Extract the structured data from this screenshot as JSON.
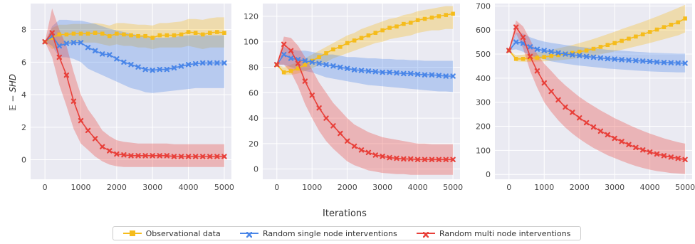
{
  "figure": {
    "xlabel": "Iterations",
    "ylabel": "𝔼 − SHD"
  },
  "legend": [
    {
      "label": "Observational data",
      "color": "#f5bc1c",
      "marker": "square"
    },
    {
      "label": "Random single node interventions",
      "color": "#4a86e8",
      "marker": "x"
    },
    {
      "label": "Random multi node interventions",
      "color": "#e8403a",
      "marker": "x"
    }
  ],
  "chart_data": [
    {
      "type": "line",
      "xlim": [
        -400,
        5200
      ],
      "ylim": [
        -1.2,
        9.6
      ],
      "xticks": [
        0,
        1000,
        2000,
        3000,
        4000,
        5000
      ],
      "yticks": [
        0,
        2,
        4,
        6,
        8
      ],
      "grid": true,
      "ylabel": "𝔼 − SHD",
      "series": [
        {
          "name": "Observational data",
          "color": "#f5bc1c",
          "x": [
            0,
            200,
            400,
            600,
            800,
            1000,
            1200,
            1400,
            1600,
            1800,
            2000,
            2200,
            2400,
            2600,
            2800,
            3000,
            3200,
            3400,
            3600,
            3800,
            4000,
            4200,
            4400,
            4600,
            4800,
            5000
          ],
          "y": [
            7.25,
            7.5,
            7.7,
            7.7,
            7.75,
            7.75,
            7.75,
            7.8,
            7.75,
            7.6,
            7.75,
            7.7,
            7.65,
            7.6,
            7.6,
            7.5,
            7.65,
            7.65,
            7.65,
            7.7,
            7.85,
            7.8,
            7.7,
            7.8,
            7.85,
            7.8
          ],
          "lower": [
            7.25,
            6.8,
            7.0,
            7.1,
            7.2,
            7.2,
            7.2,
            7.2,
            7.1,
            7.0,
            7.1,
            7.0,
            7.0,
            6.9,
            6.9,
            6.8,
            6.9,
            6.9,
            6.9,
            6.9,
            7.0,
            6.9,
            6.8,
            6.9,
            6.9,
            6.9
          ],
          "upper": [
            7.25,
            8.1,
            8.3,
            8.3,
            8.35,
            8.35,
            8.35,
            8.4,
            8.35,
            8.25,
            8.4,
            8.4,
            8.35,
            8.3,
            8.3,
            8.25,
            8.4,
            8.4,
            8.45,
            8.5,
            8.65,
            8.65,
            8.6,
            8.7,
            8.75,
            8.75
          ]
        },
        {
          "name": "Random single node interventions",
          "color": "#4a86e8",
          "x": [
            0,
            200,
            400,
            600,
            800,
            1000,
            1200,
            1400,
            1600,
            1800,
            2000,
            2200,
            2400,
            2600,
            2800,
            3000,
            3200,
            3400,
            3600,
            3800,
            4000,
            4200,
            4400,
            4600,
            4800,
            5000
          ],
          "y": [
            7.25,
            7.6,
            7.0,
            7.15,
            7.2,
            7.2,
            6.9,
            6.7,
            6.5,
            6.45,
            6.2,
            6.0,
            5.85,
            5.7,
            5.55,
            5.5,
            5.55,
            5.55,
            5.65,
            5.75,
            5.85,
            5.9,
            5.95,
            5.95,
            5.95,
            5.95
          ],
          "lower": [
            7.25,
            7.0,
            6.3,
            6.3,
            6.2,
            6.0,
            5.6,
            5.4,
            5.2,
            5.0,
            4.8,
            4.6,
            4.4,
            4.3,
            4.15,
            4.1,
            4.15,
            4.2,
            4.25,
            4.3,
            4.35,
            4.4,
            4.4,
            4.4,
            4.4,
            4.4
          ],
          "upper": [
            7.25,
            8.2,
            8.6,
            8.6,
            8.55,
            8.55,
            8.45,
            8.35,
            8.2,
            8.05,
            7.95,
            7.85,
            7.75,
            7.65,
            7.55,
            7.5,
            7.5,
            7.5,
            7.55,
            7.6,
            7.65,
            7.65,
            7.65,
            7.65,
            7.65,
            7.65
          ]
        },
        {
          "name": "Random multi node interventions",
          "color": "#e8403a",
          "x": [
            0,
            200,
            400,
            600,
            800,
            1000,
            1200,
            1400,
            1600,
            1800,
            2000,
            2200,
            2400,
            2600,
            2800,
            3000,
            3200,
            3400,
            3600,
            3800,
            4000,
            4200,
            4400,
            4600,
            4800,
            5000
          ],
          "y": [
            7.25,
            7.8,
            6.3,
            5.2,
            3.6,
            2.4,
            1.8,
            1.3,
            0.8,
            0.55,
            0.35,
            0.3,
            0.25,
            0.25,
            0.25,
            0.25,
            0.25,
            0.25,
            0.2,
            0.2,
            0.2,
            0.2,
            0.2,
            0.2,
            0.2,
            0.2
          ],
          "lower": [
            7.25,
            6.3,
            4.6,
            3.3,
            1.9,
            1.0,
            0.6,
            0.2,
            -0.1,
            -0.3,
            -0.4,
            -0.45,
            -0.45,
            -0.45,
            -0.45,
            -0.45,
            -0.45,
            -0.45,
            -0.45,
            -0.45,
            -0.45,
            -0.45,
            -0.45,
            -0.45,
            -0.45,
            -0.45
          ],
          "upper": [
            7.25,
            9.3,
            8.0,
            7.0,
            5.4,
            4.0,
            3.1,
            2.5,
            1.8,
            1.45,
            1.2,
            1.1,
            1.05,
            1.0,
            1.0,
            1.0,
            1.0,
            1.0,
            0.95,
            0.95,
            0.95,
            0.95,
            0.95,
            0.95,
            0.95,
            0.95
          ]
        }
      ]
    },
    {
      "type": "line",
      "xlim": [
        -400,
        5200
      ],
      "ylim": [
        -8,
        130
      ],
      "xticks": [
        0,
        1000,
        2000,
        3000,
        4000,
        5000
      ],
      "yticks": [
        0,
        20,
        40,
        60,
        80,
        100,
        120
      ],
      "grid": true,
      "series": [
        {
          "name": "Observational data",
          "color": "#f5bc1c",
          "x": [
            0,
            200,
            400,
            600,
            800,
            1000,
            1200,
            1400,
            1600,
            1800,
            2000,
            2200,
            2400,
            2600,
            2800,
            3000,
            3200,
            3400,
            3600,
            3800,
            4000,
            4200,
            4400,
            4600,
            4800,
            5000
          ],
          "y": [
            82,
            76,
            77,
            79,
            82,
            85,
            88,
            91,
            94,
            96,
            99,
            101,
            103,
            105,
            107,
            109,
            111,
            112,
            114,
            115,
            117,
            118,
            119,
            120,
            121,
            122
          ],
          "lower": [
            82,
            74,
            74,
            75,
            77,
            79,
            82,
            84,
            87,
            89,
            91,
            93,
            95,
            97,
            99,
            100,
            102,
            103,
            104,
            105,
            107,
            108,
            109,
            109,
            110,
            110
          ],
          "upper": [
            82,
            80,
            82,
            84,
            87,
            90,
            93,
            96,
            99,
            102,
            105,
            107,
            110,
            112,
            114,
            116,
            118,
            119,
            121,
            122,
            124,
            125,
            126,
            127,
            128,
            128
          ]
        },
        {
          "name": "Random single node interventions",
          "color": "#4a86e8",
          "x": [
            0,
            200,
            400,
            600,
            800,
            1000,
            1200,
            1400,
            1600,
            1800,
            2000,
            2200,
            2400,
            2600,
            2800,
            3000,
            3200,
            3400,
            3600,
            3800,
            4000,
            4200,
            4400,
            4600,
            4800,
            5000
          ],
          "y": [
            82,
            90,
            87,
            86,
            85,
            84,
            83,
            82,
            81,
            80,
            79,
            78,
            77.5,
            77,
            76.5,
            76,
            76,
            75.5,
            75,
            75,
            74.5,
            74,
            74,
            73.5,
            73,
            73
          ],
          "lower": [
            82,
            82,
            80,
            78,
            77,
            76,
            74,
            72,
            71,
            70,
            69,
            68,
            67,
            66,
            65.5,
            65,
            64.5,
            64,
            63.5,
            63,
            62.5,
            62,
            61.5,
            61,
            61,
            60.5
          ],
          "upper": [
            82,
            96,
            94,
            93,
            93,
            92,
            91,
            90,
            90,
            89,
            88,
            88,
            87.5,
            87,
            87,
            86.5,
            86.5,
            86,
            86,
            85.5,
            85.5,
            85,
            85,
            85,
            85,
            85
          ]
        },
        {
          "name": "Random multi node interventions",
          "color": "#e8403a",
          "x": [
            0,
            200,
            400,
            600,
            800,
            1000,
            1200,
            1400,
            1600,
            1800,
            2000,
            2200,
            2400,
            2600,
            2800,
            3000,
            3200,
            3400,
            3600,
            3800,
            4000,
            4200,
            4400,
            4600,
            4800,
            5000
          ],
          "y": [
            82,
            98,
            93,
            83,
            69,
            58,
            48,
            40,
            34,
            28,
            22,
            18,
            15,
            13,
            11,
            10,
            9,
            8.5,
            8,
            8,
            7.5,
            7.5,
            7.5,
            7.5,
            7.5,
            7.5
          ],
          "lower": [
            82,
            82,
            76,
            65,
            51,
            40,
            30,
            22,
            16,
            11,
            6,
            3,
            1,
            -1,
            -2,
            -3,
            -3.5,
            -4,
            -4,
            -4.5,
            -4.5,
            -4.5,
            -4.5,
            -4.5,
            -4.5,
            -4.5
          ],
          "upper": [
            82,
            104,
            103,
            97,
            88,
            78,
            68,
            60,
            52,
            46,
            40,
            35,
            32,
            29,
            27,
            25,
            24,
            23,
            22,
            21,
            20,
            20,
            19.5,
            19.5,
            19.5,
            19.5
          ]
        }
      ]
    },
    {
      "type": "line",
      "xlim": [
        -400,
        5200
      ],
      "ylim": [
        -20,
        710
      ],
      "xticks": [
        0,
        1000,
        2000,
        3000,
        4000,
        5000
      ],
      "yticks": [
        0,
        100,
        200,
        300,
        400,
        500,
        600,
        700
      ],
      "grid": true,
      "series": [
        {
          "name": "Observational data",
          "color": "#f5bc1c",
          "x": [
            0,
            200,
            400,
            600,
            800,
            1000,
            1200,
            1400,
            1600,
            1800,
            2000,
            2200,
            2400,
            2600,
            2800,
            3000,
            3200,
            3400,
            3600,
            3800,
            4000,
            4200,
            4400,
            4600,
            4800,
            5000
          ],
          "y": [
            515,
            480,
            480,
            482,
            485,
            488,
            492,
            496,
            500,
            505,
            510,
            515,
            522,
            530,
            538,
            546,
            555,
            564,
            573,
            582,
            592,
            602,
            612,
            622,
            632,
            648
          ],
          "lower": [
            515,
            470,
            468,
            468,
            469,
            470,
            472,
            474,
            477,
            480,
            484,
            488,
            493,
            499,
            505,
            511,
            518,
            525,
            532,
            539,
            546,
            554,
            562,
            570,
            578,
            590
          ],
          "upper": [
            515,
            495,
            498,
            502,
            507,
            512,
            518,
            524,
            531,
            538,
            546,
            554,
            563,
            573,
            583,
            593,
            604,
            614,
            624,
            634,
            645,
            656,
            668,
            680,
            692,
            705
          ]
        },
        {
          "name": "Random single node interventions",
          "color": "#4a86e8",
          "x": [
            0,
            200,
            400,
            600,
            800,
            1000,
            1200,
            1400,
            1600,
            1800,
            2000,
            2200,
            2400,
            2600,
            2800,
            3000,
            3200,
            3400,
            3600,
            3800,
            4000,
            4200,
            4400,
            4600,
            4800,
            5000
          ],
          "y": [
            515,
            550,
            545,
            530,
            520,
            515,
            510,
            505,
            500,
            497,
            494,
            490,
            487,
            484,
            481,
            479,
            477,
            475,
            473,
            471,
            469,
            467,
            465,
            464,
            463,
            462
          ],
          "lower": [
            515,
            520,
            510,
            495,
            485,
            478,
            470,
            465,
            460,
            456,
            452,
            449,
            446,
            443,
            440,
            438,
            436,
            434,
            432,
            430,
            428,
            427,
            426,
            425,
            424,
            424
          ],
          "upper": [
            515,
            590,
            585,
            570,
            560,
            552,
            547,
            542,
            538,
            534,
            530,
            527,
            524,
            521,
            518,
            516,
            514,
            512,
            510,
            508,
            506,
            505,
            504,
            503,
            502,
            502
          ]
        },
        {
          "name": "Random multi node interventions",
          "color": "#e8403a",
          "x": [
            0,
            200,
            400,
            600,
            800,
            1000,
            1200,
            1400,
            1600,
            1800,
            2000,
            2200,
            2400,
            2600,
            2800,
            3000,
            3200,
            3400,
            3600,
            3800,
            4000,
            4200,
            4400,
            4600,
            4800,
            5000
          ],
          "y": [
            515,
            612,
            570,
            490,
            430,
            380,
            345,
            310,
            280,
            258,
            235,
            215,
            197,
            180,
            165,
            150,
            137,
            124,
            112,
            102,
            93,
            85,
            78,
            72,
            67,
            62
          ],
          "lower": [
            515,
            585,
            525,
            430,
            360,
            300,
            260,
            225,
            195,
            170,
            148,
            128,
            110,
            95,
            80,
            68,
            56,
            45,
            35,
            27,
            20,
            14,
            10,
            6,
            4,
            2
          ],
          "upper": [
            515,
            640,
            615,
            560,
            500,
            460,
            430,
            398,
            370,
            346,
            322,
            302,
            284,
            266,
            250,
            234,
            220,
            206,
            193,
            181,
            170,
            160,
            150,
            142,
            134,
            128
          ]
        }
      ]
    }
  ]
}
